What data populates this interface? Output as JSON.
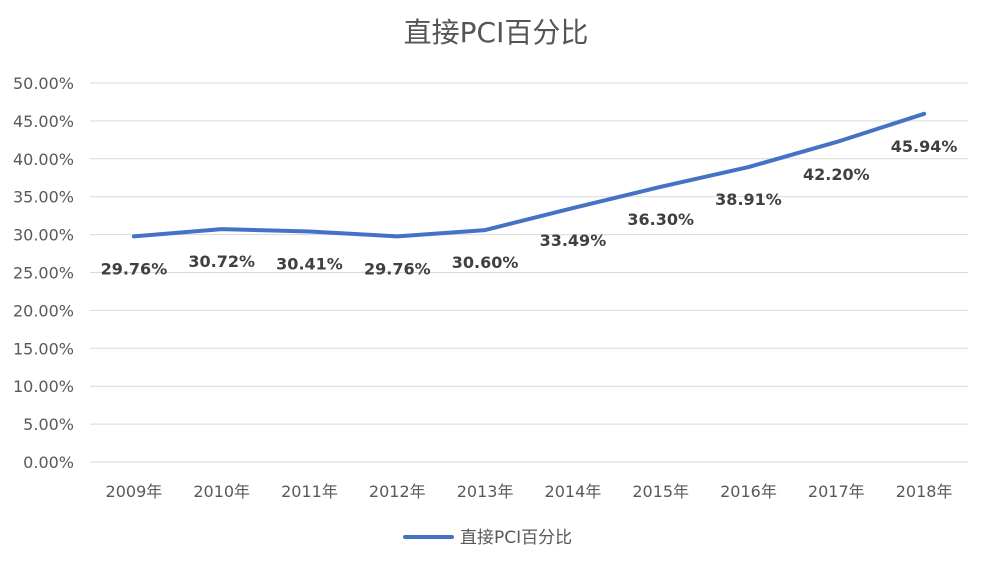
{
  "chart_data": {
    "type": "line",
    "title": "直接PCI百分比",
    "categories": [
      "2009年",
      "2010年",
      "2011年",
      "2012年",
      "2013年",
      "2014年",
      "2015年",
      "2016年",
      "2017年",
      "2018年"
    ],
    "series": [
      {
        "name": "直接PCI百分比",
        "values": [
          29.76,
          30.72,
          30.41,
          29.76,
          30.6,
          33.49,
          36.3,
          38.91,
          42.2,
          45.94
        ],
        "labels": [
          "29.76%",
          "30.72%",
          "30.41%",
          "29.76%",
          "30.60%",
          "33.49%",
          "36.30%",
          "38.91%",
          "42.20%",
          "45.94%"
        ],
        "color": "#4472c4"
      }
    ],
    "y_ticks": [
      "0.00%",
      "5.00%",
      "10.00%",
      "15.00%",
      "20.00%",
      "25.00%",
      "30.00%",
      "35.00%",
      "40.00%",
      "45.00%",
      "50.00%"
    ],
    "ylim": [
      0,
      50
    ],
    "xlabel": "",
    "ylabel": "",
    "grid": true,
    "legend": "bottom-center",
    "colors": {
      "grid": "#d9d9d9",
      "text": "#595959"
    }
  }
}
